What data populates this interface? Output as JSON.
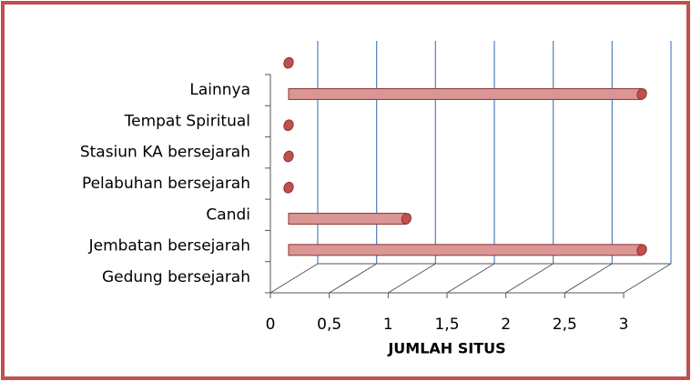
{
  "chart_data": {
    "type": "bar",
    "orientation": "horizontal",
    "categories": [
      "Gedung bersejarah",
      "Jembatan bersejarah",
      "Candi",
      "Pelabuhan bersejarah",
      "Stasiun KA bersejarah",
      "Tempat Spiritual",
      "Lainnya"
    ],
    "values": [
      3,
      1,
      0,
      0,
      0,
      3,
      0
    ],
    "color": "#c0504d",
    "xlabel": "JUMLAH SITUS",
    "xlim": [
      0,
      3
    ],
    "xticks": [
      0,
      {
        "value": 0.5,
        "label": "0,5"
      },
      1,
      {
        "value": 1.5,
        "label": "1,5"
      },
      2,
      {
        "value": 2.5,
        "label": "2,5"
      },
      3
    ],
    "grid": true
  }
}
